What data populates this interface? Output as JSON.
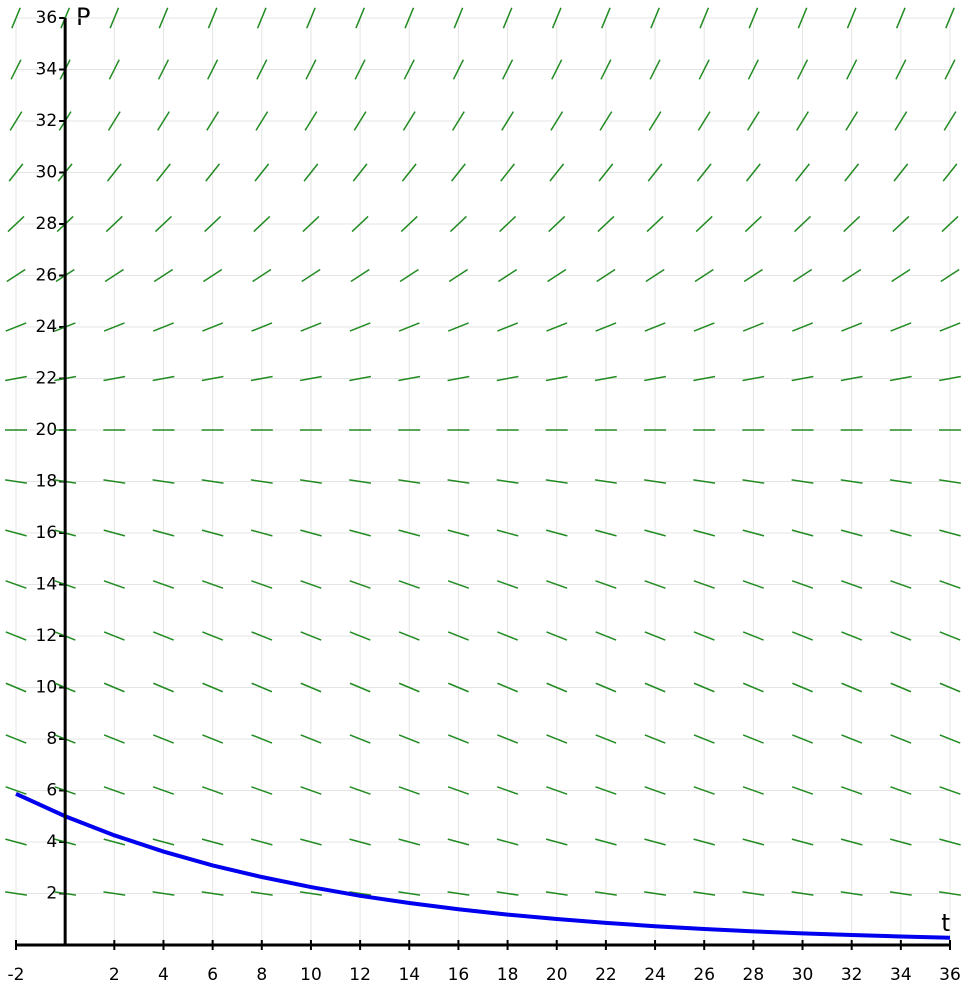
{
  "chart_data": {
    "type": "slope-field",
    "x_label": "t",
    "y_label": "P",
    "xlim": [
      -2,
      36
    ],
    "ylim": [
      0,
      36
    ],
    "xticks": [
      -2,
      2,
      4,
      6,
      8,
      10,
      12,
      14,
      16,
      18,
      20,
      22,
      24,
      26,
      28,
      30,
      32,
      34,
      36
    ],
    "yticks": [
      2,
      4,
      6,
      8,
      10,
      12,
      14,
      16,
      18,
      20,
      22,
      24,
      26,
      28,
      30,
      32,
      34,
      36
    ],
    "grid": true,
    "field": {
      "color": "#228b22",
      "t": [
        -2,
        0,
        2,
        4,
        6,
        8,
        10,
        12,
        14,
        16,
        18,
        20,
        22,
        24,
        26,
        28,
        30,
        32,
        34,
        36
      ],
      "P": [
        2,
        4,
        6,
        8,
        10,
        12,
        14,
        16,
        18,
        20,
        22,
        24,
        26,
        28,
        30,
        32,
        34,
        36
      ],
      "slopes": [
        -0.144,
        -0.256,
        -0.336,
        -0.384,
        -0.4,
        -0.384,
        -0.336,
        -0.256,
        -0.144,
        0,
        0.176,
        0.384,
        0.624,
        0.896,
        1.2,
        1.536,
        1.904,
        2.304
      ]
    },
    "curve": {
      "color": "#0000ee",
      "x": [
        -2,
        0,
        2,
        4,
        6,
        8,
        10,
        12,
        14,
        16,
        18,
        20,
        22,
        24,
        26,
        28,
        30,
        32,
        34,
        36
      ],
      "values": [
        5.87,
        5,
        4.26,
        3.63,
        3.09,
        2.64,
        2.25,
        1.91,
        1.63,
        1.39,
        1.18,
        1.01,
        0.86,
        0.73,
        0.62,
        0.53,
        0.45,
        0.39,
        0.33,
        0.28
      ]
    }
  }
}
